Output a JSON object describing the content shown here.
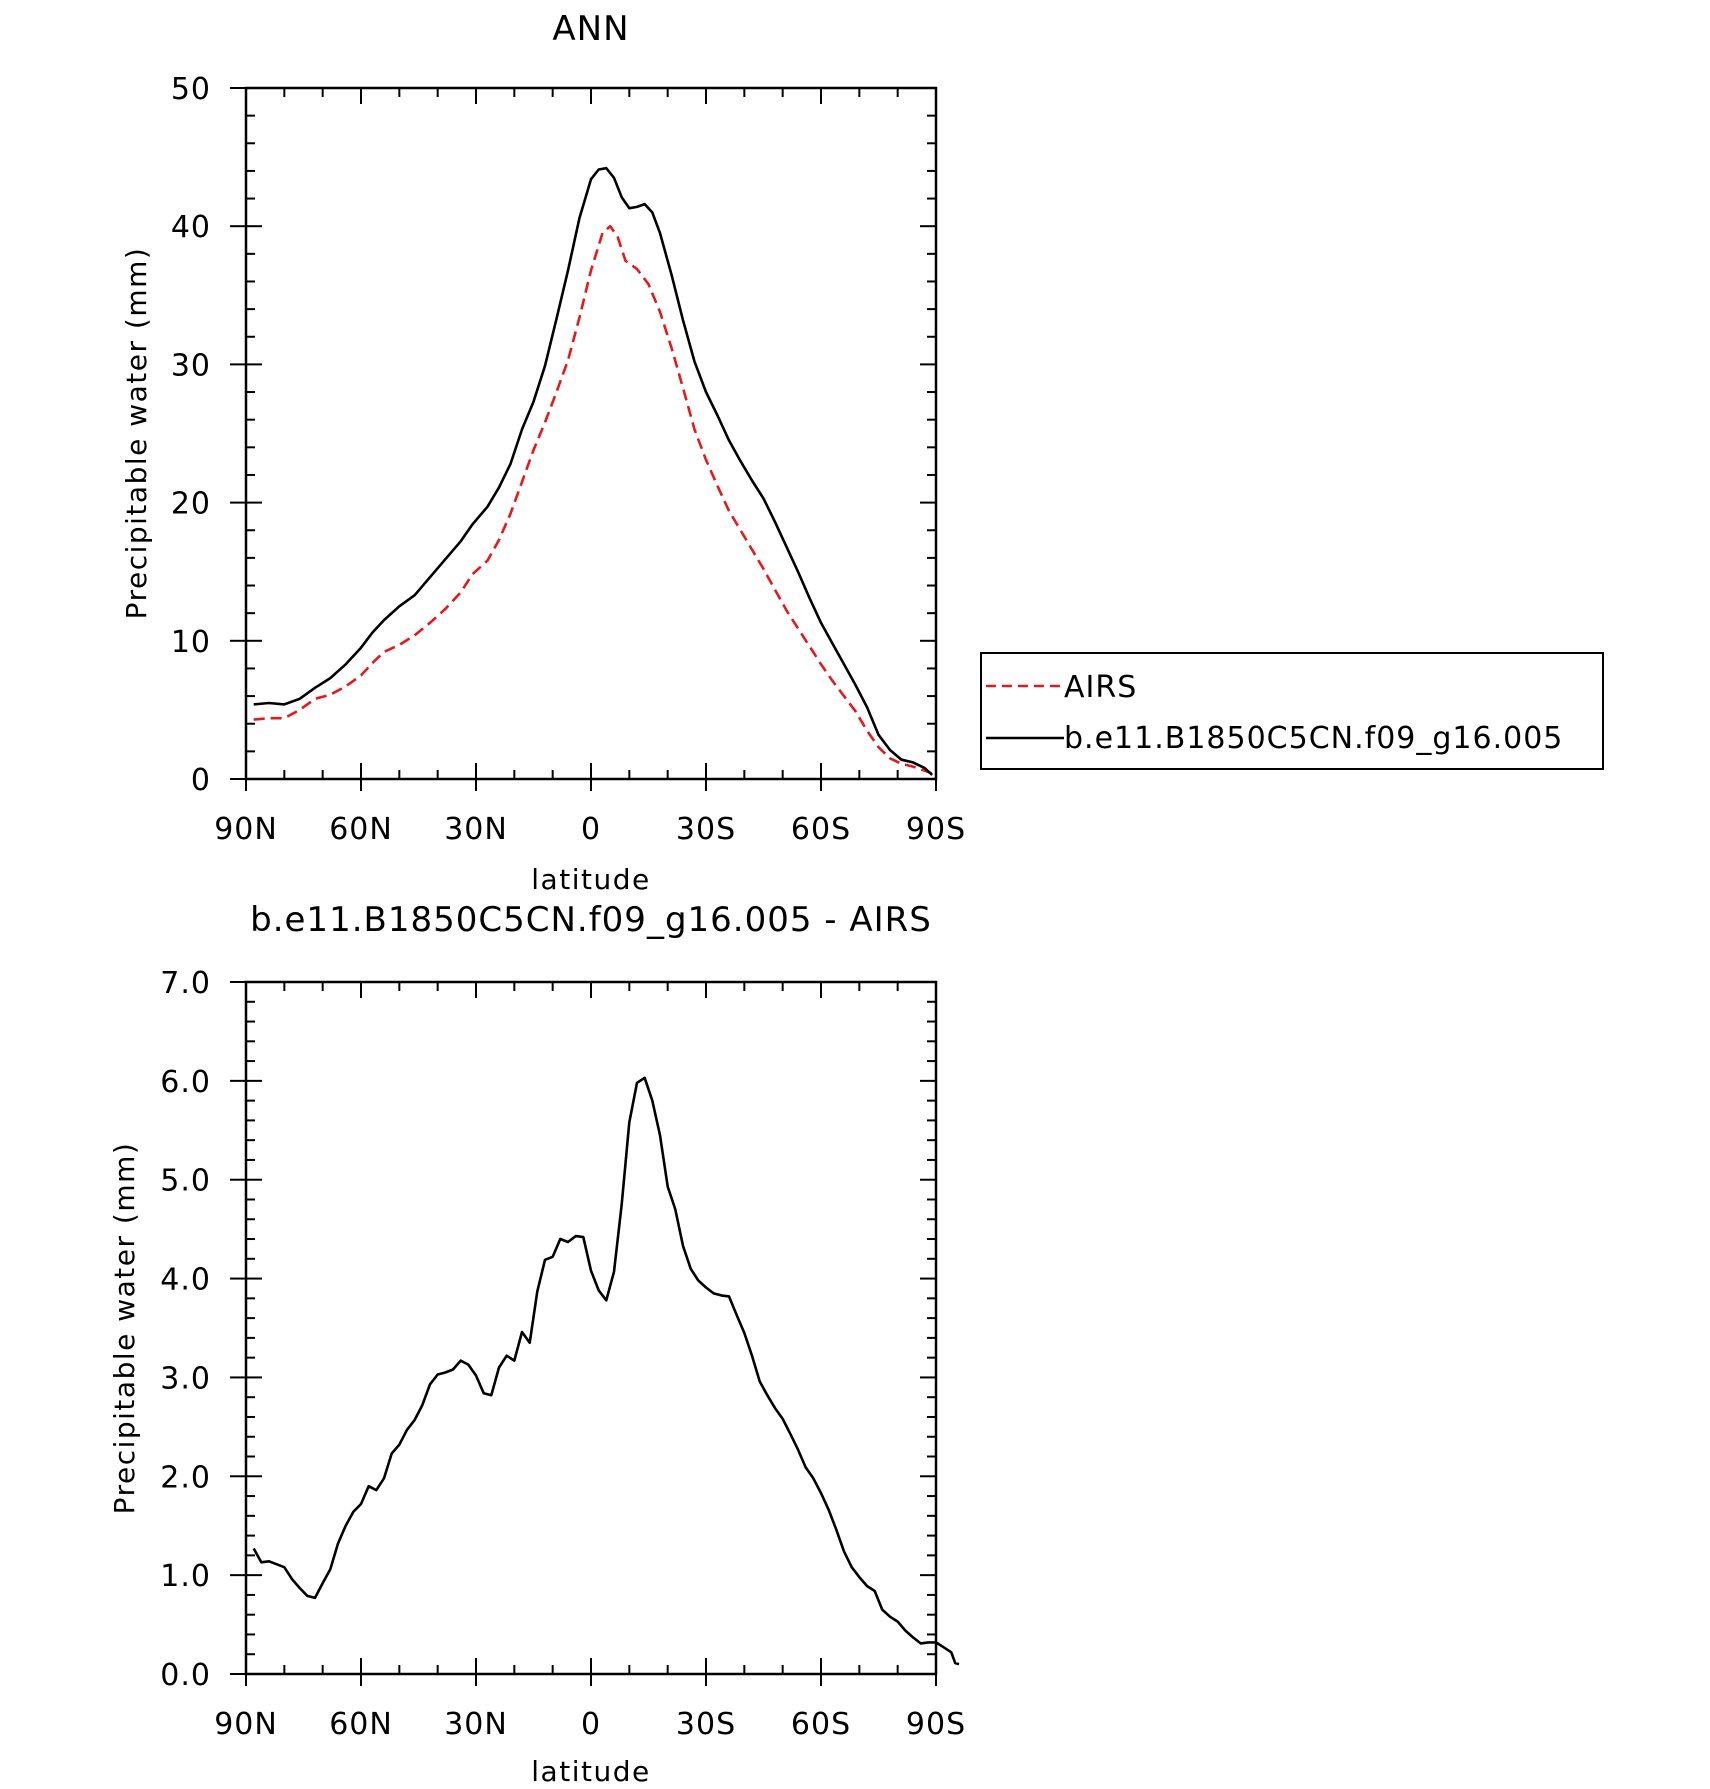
{
  "chart_data": [
    {
      "type": "line",
      "title": "ANN",
      "xlabel": "latitude",
      "ylabel": "Precipitable water (mm)",
      "xlim": [
        90,
        -90
      ],
      "ylim": [
        0,
        50
      ],
      "xticks": [
        "90N",
        "60N",
        "30N",
        "0",
        "30S",
        "60S",
        "90S"
      ],
      "yticks": [
        "0",
        "10",
        "20",
        "30",
        "40",
        "50"
      ],
      "legend_position": "right",
      "series": [
        {
          "name": "AIRS",
          "color": "#e31a1c",
          "style": "dashed",
          "points": [
            [
              88,
              4.3
            ],
            [
              84,
              4.4
            ],
            [
              80,
              4.4
            ],
            [
              76,
              5
            ],
            [
              72,
              5.8
            ],
            [
              68,
              6.1
            ],
            [
              64,
              6.7
            ],
            [
              60,
              7.5
            ],
            [
              57,
              8.4
            ],
            [
              54,
              9.2
            ],
            [
              50,
              9.7
            ],
            [
              46,
              10.4
            ],
            [
              42,
              11.3
            ],
            [
              38,
              12.3
            ],
            [
              34,
              13.5
            ],
            [
              31,
              14.8
            ],
            [
              27,
              15.8
            ],
            [
              24,
              17.3
            ],
            [
              21,
              19.2
            ],
            [
              18,
              21.5
            ],
            [
              15,
              23.8
            ],
            [
              12,
              25.8
            ],
            [
              9,
              28
            ],
            [
              6,
              30.3
            ],
            [
              3,
              33.4
            ],
            [
              0,
              36.8
            ],
            [
              -3,
              39.5
            ],
            [
              -5,
              40
            ],
            [
              -7,
              39.2
            ],
            [
              -9,
              37.5
            ],
            [
              -12,
              36.9
            ],
            [
              -15,
              35.8
            ],
            [
              -18,
              33.8
            ],
            [
              -21,
              31.2
            ],
            [
              -24,
              28.3
            ],
            [
              -27,
              25.3
            ],
            [
              -30,
              23.1
            ],
            [
              -33,
              21.2
            ],
            [
              -36,
              19.4
            ],
            [
              -39,
              18
            ],
            [
              -42,
              16.6
            ],
            [
              -45,
              15.2
            ],
            [
              -48,
              13.7
            ],
            [
              -51,
              12.2
            ],
            [
              -54,
              10.9
            ],
            [
              -57,
              9.6
            ],
            [
              -60,
              8.3
            ],
            [
              -63,
              7.1
            ],
            [
              -66,
              6
            ],
            [
              -69,
              4.9
            ],
            [
              -72,
              3.5
            ],
            [
              -75,
              2.3
            ],
            [
              -78,
              1.5
            ],
            [
              -81,
              1.1
            ],
            [
              -84,
              0.9
            ],
            [
              -87,
              0.6
            ],
            [
              -89,
              0.4
            ]
          ]
        },
        {
          "name": "b.e11.B1850C5CN.f09_g16.005",
          "color": "#000000",
          "style": "solid",
          "points": [
            [
              88,
              5.4
            ],
            [
              84,
              5.5
            ],
            [
              80,
              5.4
            ],
            [
              76,
              5.8
            ],
            [
              72,
              6.6
            ],
            [
              68,
              7.3
            ],
            [
              64,
              8.3
            ],
            [
              60,
              9.5
            ],
            [
              57,
              10.6
            ],
            [
              54,
              11.5
            ],
            [
              50,
              12.5
            ],
            [
              46,
              13.3
            ],
            [
              42,
              14.6
            ],
            [
              38,
              15.9
            ],
            [
              34,
              17.2
            ],
            [
              31,
              18.4
            ],
            [
              27,
              19.7
            ],
            [
              24,
              21.1
            ],
            [
              21,
              22.8
            ],
            [
              18,
              25.3
            ],
            [
              15,
              27.3
            ],
            [
              12,
              29.9
            ],
            [
              9,
              33.3
            ],
            [
              6,
              36.8
            ],
            [
              3,
              40.6
            ],
            [
              0,
              43.4
            ],
            [
              -2,
              44.1
            ],
            [
              -4,
              44.2
            ],
            [
              -6,
              43.5
            ],
            [
              -8,
              42.1
            ],
            [
              -10,
              41.3
            ],
            [
              -12,
              41.4
            ],
            [
              -14,
              41.6
            ],
            [
              -16,
              41
            ],
            [
              -18,
              39.5
            ],
            [
              -21,
              36.5
            ],
            [
              -24,
              33.2
            ],
            [
              -27,
              30.2
            ],
            [
              -30,
              28
            ],
            [
              -33,
              26.3
            ],
            [
              -36,
              24.5
            ],
            [
              -39,
              23
            ],
            [
              -42,
              21.6
            ],
            [
              -45,
              20.3
            ],
            [
              -48,
              18.6
            ],
            [
              -51,
              16.8
            ],
            [
              -54,
              15
            ],
            [
              -57,
              13.1
            ],
            [
              -60,
              11.3
            ],
            [
              -63,
              9.8
            ],
            [
              -66,
              8.3
            ],
            [
              -69,
              6.8
            ],
            [
              -72,
              5.2
            ],
            [
              -75,
              3.2
            ],
            [
              -78,
              2.1
            ],
            [
              -81,
              1.4
            ],
            [
              -84,
              1.2
            ],
            [
              -87,
              0.8
            ],
            [
              -89,
              0.3
            ]
          ]
        }
      ]
    },
    {
      "type": "line",
      "title": "b.e11.B1850C5CN.f09_g16.005 - AIRS",
      "xlabel": "latitude",
      "ylabel": "Precipitable water (mm)",
      "xlim": [
        90,
        -90
      ],
      "ylim": [
        0,
        7
      ],
      "xticks": [
        "90N",
        "60N",
        "30N",
        "0",
        "30S",
        "60S",
        "90S"
      ],
      "yticks": [
        "0.0",
        "1.0",
        "2.0",
        "3.0",
        "4.0",
        "5.0",
        "6.0",
        "7.0"
      ],
      "series": [
        {
          "color": "#000000",
          "style": "solid",
          "points": [
            [
              88,
              1.27
            ],
            [
              86,
              1.13
            ],
            [
              84,
              1.14
            ],
            [
              80,
              1.08
            ],
            [
              78,
              0.96
            ],
            [
              76,
              0.87
            ],
            [
              74,
              0.79
            ],
            [
              72,
              0.77
            ],
            [
              70,
              0.92
            ],
            [
              68,
              1.06
            ],
            [
              66,
              1.32
            ],
            [
              64,
              1.5
            ],
            [
              62,
              1.64
            ],
            [
              60,
              1.72
            ],
            [
              58,
              1.9
            ],
            [
              56,
              1.86
            ],
            [
              54,
              1.98
            ],
            [
              52,
              2.23
            ],
            [
              50,
              2.32
            ],
            [
              48,
              2.47
            ],
            [
              46,
              2.57
            ],
            [
              44,
              2.72
            ],
            [
              42,
              2.93
            ],
            [
              40,
              3.03
            ],
            [
              38,
              3.05
            ],
            [
              36,
              3.08
            ],
            [
              34,
              3.17
            ],
            [
              32,
              3.13
            ],
            [
              30,
              3.02
            ],
            [
              28,
              2.84
            ],
            [
              26,
              2.82
            ],
            [
              24,
              3.1
            ],
            [
              22,
              3.22
            ],
            [
              20,
              3.17
            ],
            [
              18,
              3.46
            ],
            [
              16,
              3.35
            ],
            [
              14,
              3.87
            ],
            [
              12,
              4.19
            ],
            [
              10,
              4.22
            ],
            [
              8,
              4.4
            ],
            [
              6,
              4.37
            ],
            [
              4,
              4.43
            ],
            [
              2,
              4.42
            ],
            [
              0,
              4.08
            ],
            [
              -2,
              3.88
            ],
            [
              -4,
              3.78
            ],
            [
              -6,
              4.07
            ],
            [
              -8,
              4.75
            ],
            [
              -10,
              5.58
            ],
            [
              -12,
              5.98
            ],
            [
              -14,
              6.03
            ],
            [
              -16,
              5.8
            ],
            [
              -18,
              5.45
            ],
            [
              -20,
              4.93
            ],
            [
              -22,
              4.7
            ],
            [
              -24,
              4.33
            ],
            [
              -26,
              4.1
            ],
            [
              -28,
              3.98
            ],
            [
              -30,
              3.91
            ],
            [
              -32,
              3.85
            ],
            [
              -34,
              3.83
            ],
            [
              -36,
              3.82
            ],
            [
              -38,
              3.63
            ],
            [
              -40,
              3.45
            ],
            [
              -42,
              3.22
            ],
            [
              -44,
              2.96
            ],
            [
              -46,
              2.82
            ],
            [
              -48,
              2.69
            ],
            [
              -50,
              2.58
            ],
            [
              -52,
              2.43
            ],
            [
              -54,
              2.27
            ],
            [
              -56,
              2.09
            ],
            [
              -58,
              1.98
            ],
            [
              -60,
              1.83
            ],
            [
              -62,
              1.66
            ],
            [
              -64,
              1.46
            ],
            [
              -66,
              1.24
            ],
            [
              -68,
              1.08
            ],
            [
              -70,
              0.98
            ],
            [
              -72,
              0.89
            ],
            [
              -74,
              0.84
            ],
            [
              -76,
              0.65
            ],
            [
              -78,
              0.58
            ],
            [
              -80,
              0.53
            ],
            [
              -82,
              0.44
            ],
            [
              -84,
              0.37
            ],
            [
              -86,
              0.31
            ],
            [
              -88,
              0.32
            ],
            [
              -90,
              0.32
            ],
            [
              -92,
              0.27
            ],
            [
              -94,
              0.22
            ],
            [
              -95,
              0.11
            ],
            [
              -96,
              0.1
            ]
          ]
        }
      ]
    }
  ]
}
